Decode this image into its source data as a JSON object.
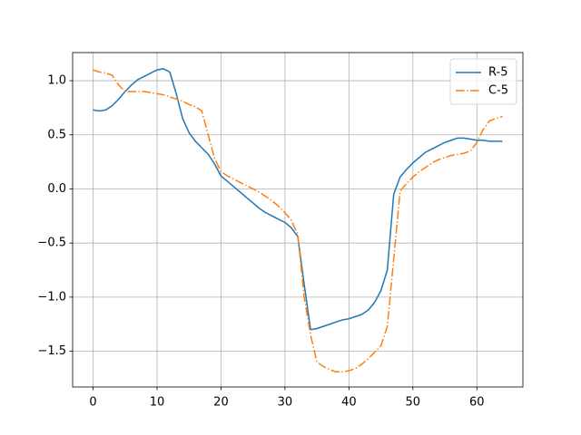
{
  "chart_data": {
    "type": "line",
    "x": [
      0,
      1,
      2,
      3,
      4,
      5,
      6,
      7,
      8,
      9,
      10,
      11,
      12,
      13,
      14,
      15,
      16,
      17,
      18,
      19,
      20,
      21,
      22,
      23,
      24,
      25,
      26,
      27,
      28,
      29,
      30,
      31,
      32,
      33,
      34,
      35,
      36,
      37,
      38,
      39,
      40,
      41,
      42,
      43,
      44,
      45,
      46,
      47,
      48,
      49,
      50,
      51,
      52,
      53,
      54,
      55,
      56,
      57,
      58,
      59,
      60,
      61,
      62,
      63,
      64
    ],
    "series": [
      {
        "name": "R-5",
        "color": "#1f77b4",
        "linestyle": "solid",
        "values": [
          0.73,
          0.72,
          0.73,
          0.77,
          0.83,
          0.9,
          0.96,
          1.01,
          1.04,
          1.07,
          1.1,
          1.11,
          1.08,
          0.88,
          0.65,
          0.52,
          0.44,
          0.38,
          0.32,
          0.23,
          0.12,
          0.07,
          0.02,
          -0.03,
          -0.08,
          -0.13,
          -0.18,
          -0.22,
          -0.25,
          -0.28,
          -0.31,
          -0.36,
          -0.44,
          -0.88,
          -1.3,
          -1.29,
          -1.27,
          -1.25,
          -1.23,
          -1.21,
          -1.2,
          -1.18,
          -1.16,
          -1.12,
          -1.05,
          -0.94,
          -0.75,
          -0.05,
          0.11,
          0.18,
          0.24,
          0.29,
          0.34,
          0.37,
          0.4,
          0.43,
          0.45,
          0.47,
          0.47,
          0.46,
          0.45,
          0.45,
          0.44,
          0.44,
          0.44
        ]
      },
      {
        "name": "C-5",
        "color": "#ff7f0e",
        "linestyle": "dashdot",
        "values": [
          1.1,
          1.08,
          1.07,
          1.05,
          0.96,
          0.9,
          0.9,
          0.9,
          0.9,
          0.89,
          0.88,
          0.87,
          0.85,
          0.83,
          0.81,
          0.78,
          0.76,
          0.72,
          0.5,
          0.28,
          0.16,
          0.12,
          0.09,
          0.06,
          0.03,
          0.0,
          -0.03,
          -0.07,
          -0.11,
          -0.16,
          -0.22,
          -0.29,
          -0.42,
          -1.0,
          -1.35,
          -1.6,
          -1.64,
          -1.67,
          -1.69,
          -1.69,
          -1.68,
          -1.66,
          -1.62,
          -1.57,
          -1.51,
          -1.45,
          -1.27,
          -0.65,
          -0.02,
          0.05,
          0.11,
          0.16,
          0.2,
          0.24,
          0.27,
          0.29,
          0.31,
          0.32,
          0.33,
          0.35,
          0.43,
          0.55,
          0.63,
          0.65,
          0.67
        ]
      }
    ],
    "xlim": [
      -3.2,
      67.2
    ],
    "xticks": [
      0,
      10,
      20,
      30,
      40,
      50,
      60
    ],
    "ylim": [
      -1.83,
      1.26
    ],
    "yticks": [
      {
        "value": -1.5,
        "label": "−1.5"
      },
      {
        "value": -1.0,
        "label": "−1.0"
      },
      {
        "value": -0.5,
        "label": "−0.5"
      },
      {
        "value": 0.0,
        "label": "0.0"
      },
      {
        "value": 0.5,
        "label": "0.5"
      },
      {
        "value": 1.0,
        "label": "1.0"
      }
    ],
    "grid": true,
    "legend": "upper right"
  }
}
